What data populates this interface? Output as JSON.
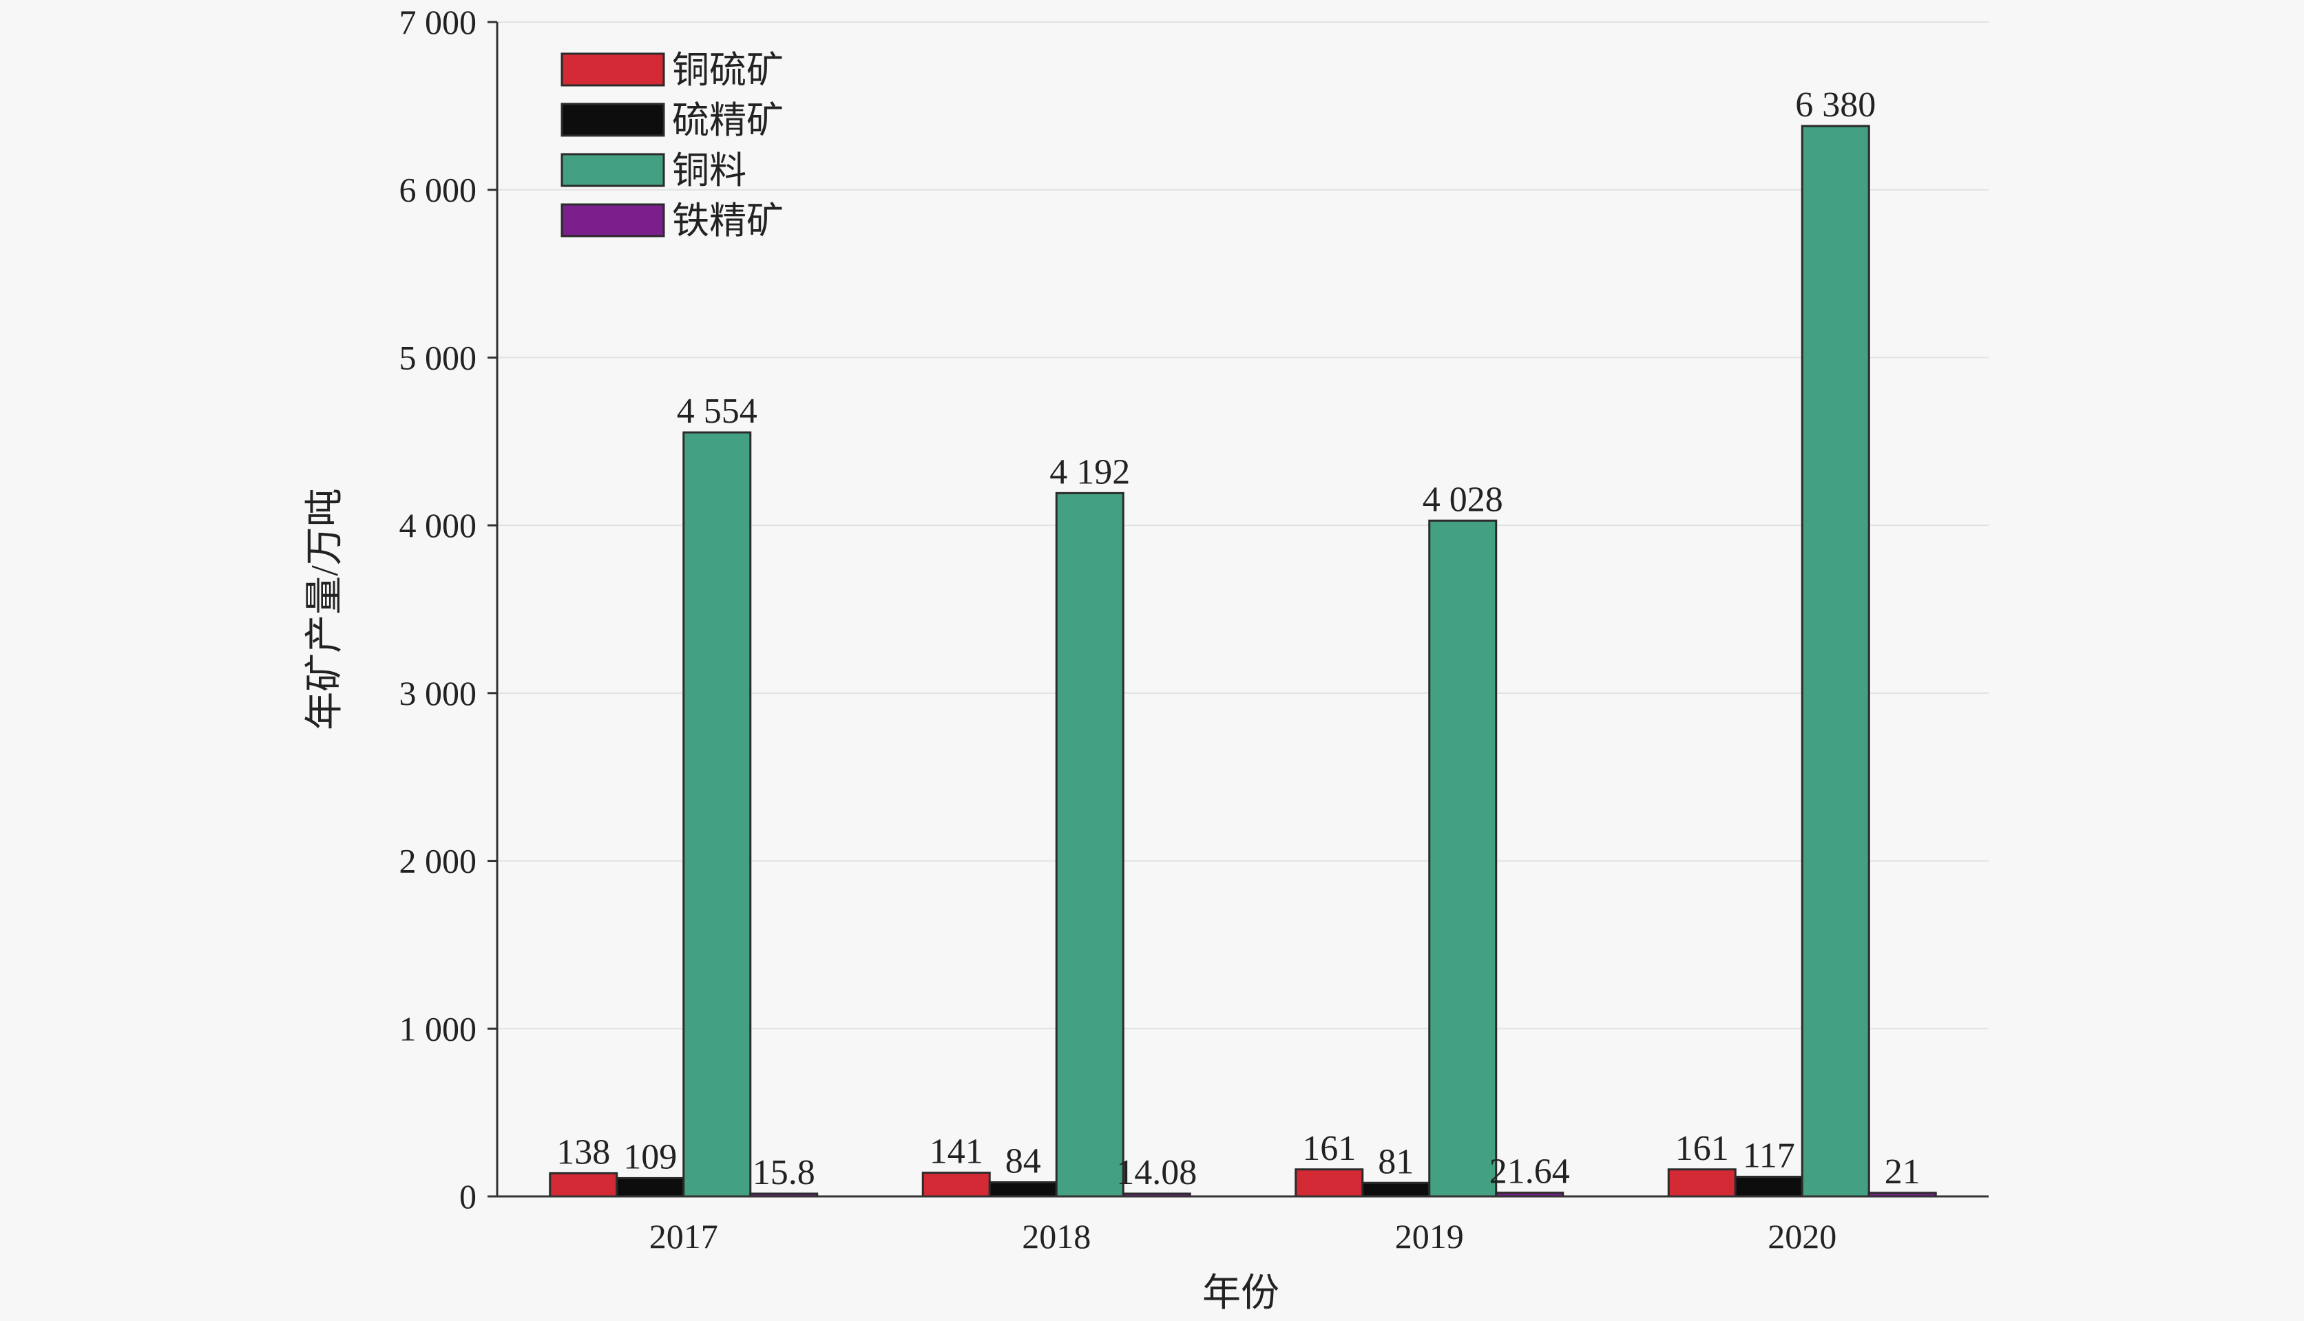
{
  "chart_data": {
    "type": "bar",
    "title": "",
    "xlabel": "年份",
    "ylabel": "年矿产量/万吨",
    "categories": [
      "2017",
      "2018",
      "2019",
      "2020"
    ],
    "ylim": [
      0,
      7000
    ],
    "yticks": [
      0,
      1000,
      2000,
      3000,
      4000,
      5000,
      6000,
      7000
    ],
    "ytick_labels": [
      "0",
      "1 000",
      "2 000",
      "3 000",
      "4 000",
      "5 000",
      "6 000",
      "7 000"
    ],
    "grid": true,
    "legend_position": "top-left",
    "series": [
      {
        "name": "铜硫矿",
        "color": "#d42a35",
        "values": [
          138,
          141,
          161,
          161
        ],
        "labels": [
          "138",
          "141",
          "161",
          "161"
        ]
      },
      {
        "name": "硫精矿",
        "color": "#0d0d0d",
        "values": [
          109,
          84,
          81,
          117
        ],
        "labels": [
          "109",
          "84",
          "81",
          "117"
        ]
      },
      {
        "name": "铜料",
        "color": "#44a082",
        "values": [
          4554,
          4192,
          4028,
          6380
        ],
        "labels": [
          "4 554",
          "4 192",
          "4 028",
          "6 380"
        ]
      },
      {
        "name": "铁精矿",
        "color": "#7a1f8c",
        "values": [
          15.8,
          14.08,
          21.64,
          21
        ],
        "labels": [
          "15.8",
          "14.08",
          "21.64",
          "21"
        ]
      }
    ]
  }
}
